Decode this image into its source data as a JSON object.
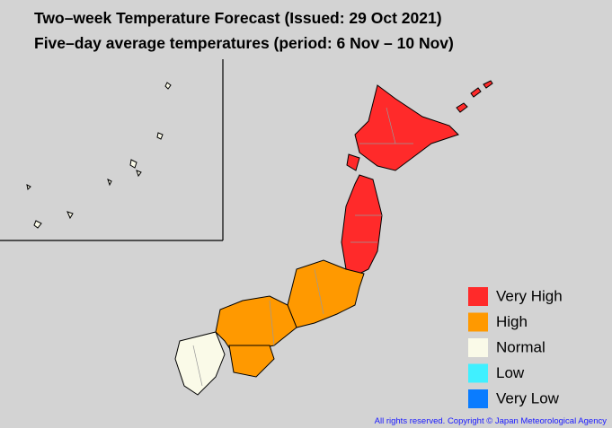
{
  "header": {
    "title": "Two–week Temperature Forecast (Issued: 29 Oct 2021)",
    "subtitle": "Five–day average temperatures (period: 6 Nov – 10 Nov)"
  },
  "legend": [
    {
      "label": "Very High",
      "color": "#ff2a2a"
    },
    {
      "label": "High",
      "color": "#ff9900"
    },
    {
      "label": "Normal",
      "color": "#fafae8"
    },
    {
      "label": "Low",
      "color": "#40f0ff"
    },
    {
      "label": "Very Low",
      "color": "#0a7cff"
    }
  ],
  "footer": {
    "copyright": "All rights reserved. Copyright © Japan Meteorological Agency"
  }
}
